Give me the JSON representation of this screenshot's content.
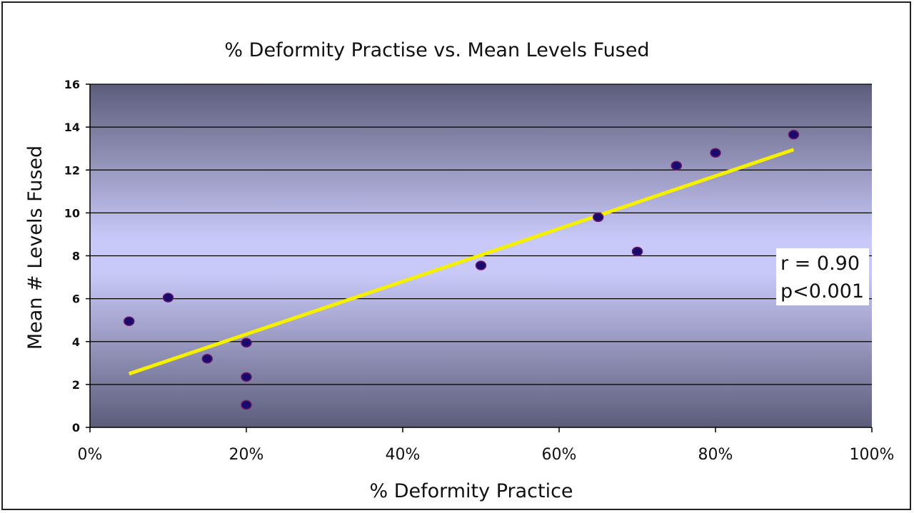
{
  "chart_data": {
    "type": "scatter",
    "title": "% Deformity Practise vs. Mean Levels Fused",
    "xlabel": "% Deformity Practice",
    "ylabel": "Mean # Levels Fused",
    "xlim": [
      0,
      100
    ],
    "ylim": [
      0,
      16
    ],
    "x_ticks": [
      0,
      20,
      40,
      60,
      80,
      100
    ],
    "x_tick_labels": [
      "0%",
      "20%",
      "40%",
      "60%",
      "80%",
      "100%"
    ],
    "y_ticks": [
      0,
      2,
      4,
      6,
      8,
      10,
      12,
      14,
      16
    ],
    "y_tick_labels": [
      "0",
      "2",
      "4",
      "6",
      "8",
      "10",
      "12",
      "14",
      "16"
    ],
    "grid": "horizontal",
    "points": [
      {
        "x": 5,
        "y": 4.95
      },
      {
        "x": 10,
        "y": 6.05
      },
      {
        "x": 15,
        "y": 3.2
      },
      {
        "x": 20,
        "y": 3.95
      },
      {
        "x": 20,
        "y": 2.35
      },
      {
        "x": 20,
        "y": 1.05
      },
      {
        "x": 50,
        "y": 7.55
      },
      {
        "x": 65,
        "y": 9.8
      },
      {
        "x": 70,
        "y": 8.2
      },
      {
        "x": 75,
        "y": 12.2
      },
      {
        "x": 80,
        "y": 12.8
      },
      {
        "x": 90,
        "y": 13.65
      }
    ],
    "trendline": {
      "x": [
        5,
        90
      ],
      "y": [
        2.5,
        12.95
      ],
      "color": "#f5f000"
    },
    "annotation": [
      "r = 0.90",
      "p<0.001"
    ],
    "colors": {
      "marker_fill": "#1a0a6e",
      "marker_edge": "#6a1a6a",
      "plot_bg_center": "#c8c8f8",
      "plot_bg_edge": "#5e5e7c"
    }
  }
}
